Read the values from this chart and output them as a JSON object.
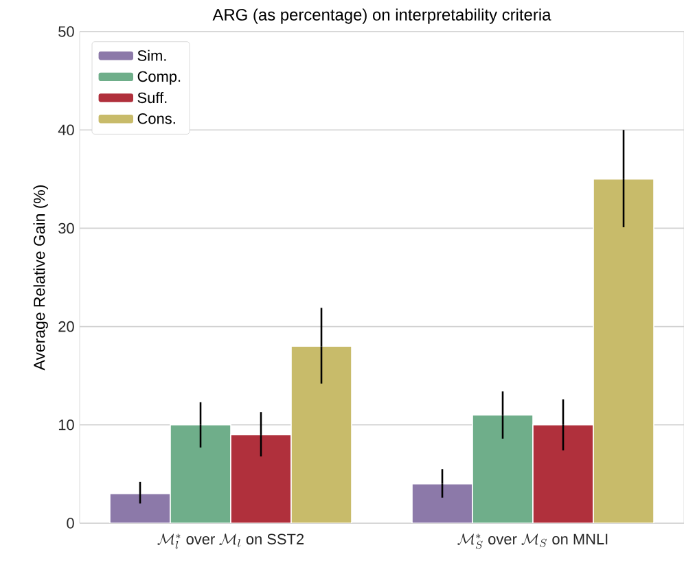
{
  "chart_data": {
    "type": "bar",
    "title": "ARG (as percentage) on interpretability criteria",
    "ylabel": "Average Relative Gain (%)",
    "categories": [
      "\\mathcal{M}_l^{*}\\ \\mathrm{over}\\ \\mathcal{M}_l\\ \\mathrm{on\\ SST2}",
      "\\mathcal{M}_S^{*}\\ \\mathrm{over}\\ \\mathcal{M}_S\\ \\mathrm{on\\ MNLI}"
    ],
    "series": [
      {
        "name": "Sim.",
        "color": "#8c79a9",
        "values": [
          3,
          4
        ],
        "errors": [
          [
            2,
            4.2
          ],
          [
            2.6,
            5.5
          ]
        ]
      },
      {
        "name": "Comp.",
        "color": "#6fae8a",
        "values": [
          10,
          11
        ],
        "errors": [
          [
            7.7,
            12.3
          ],
          [
            8.6,
            13.4
          ]
        ]
      },
      {
        "name": "Suff.",
        "color": "#b0303c",
        "values": [
          9,
          10
        ],
        "errors": [
          [
            6.8,
            11.3
          ],
          [
            7.4,
            12.6
          ]
        ]
      },
      {
        "name": "Cons.",
        "color": "#c8bb6a",
        "values": [
          18,
          35
        ],
        "errors": [
          [
            14.2,
            21.9
          ],
          [
            30.1,
            40
          ]
        ]
      }
    ],
    "ylim": [
      0,
      50
    ],
    "yticks": [
      0,
      10,
      20,
      30,
      40,
      50
    ],
    "grid": "y",
    "legend": "top left"
  }
}
